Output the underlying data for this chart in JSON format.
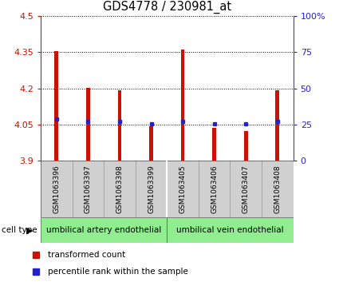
{
  "title": "GDS4778 / 230981_at",
  "samples": [
    "GSM1063396",
    "GSM1063397",
    "GSM1063398",
    "GSM1063399",
    "GSM1063405",
    "GSM1063406",
    "GSM1063407",
    "GSM1063408"
  ],
  "red_values": [
    4.356,
    4.201,
    4.193,
    4.043,
    4.362,
    4.038,
    4.023,
    4.193
  ],
  "blue_values": [
    4.075,
    4.063,
    4.063,
    4.053,
    4.065,
    4.053,
    4.053,
    4.065
  ],
  "ylim": [
    3.9,
    4.5
  ],
  "yticks": [
    3.9,
    4.05,
    4.2,
    4.35,
    4.5
  ],
  "ytick_labels": [
    "3.9",
    "4.05",
    "4.2",
    "4.35",
    "4.5"
  ],
  "y2ticks": [
    0,
    25,
    50,
    75,
    100
  ],
  "y2labels": [
    "0",
    "25",
    "50",
    "75",
    "100%"
  ],
  "red_color": "#cc1100",
  "blue_color": "#2222cc",
  "bar_bottom": 3.9,
  "bar_width": 0.12,
  "cell_type_groups": [
    {
      "label": "umbilical artery endothelial",
      "start": 0,
      "end": 4
    },
    {
      "label": "umbilical vein endothelial",
      "start": 4,
      "end": 8
    }
  ],
  "cell_type_label": "cell type",
  "legend_red": "transformed count",
  "legend_blue": "percentile rank within the sample",
  "group_color": "#90ee90",
  "label_bg_color": "#d0d0d0"
}
